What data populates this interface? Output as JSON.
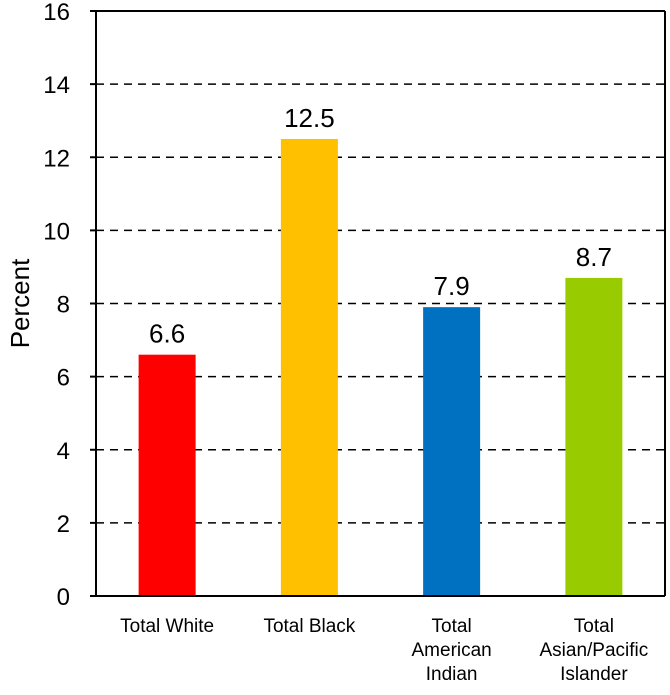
{
  "chart_data": {
    "type": "bar",
    "title": "",
    "xlabel": "",
    "ylabel": "Percent",
    "ylim": [
      0,
      16
    ],
    "yticks": [
      0,
      2,
      4,
      6,
      8,
      10,
      12,
      14,
      16
    ],
    "grid": "dashed horizontal",
    "legend": "none",
    "categories": [
      [
        "Total White"
      ],
      [
        "Total Black"
      ],
      [
        "Total",
        "American",
        "Indian"
      ],
      [
        "Total",
        "Asian/Pacific",
        "Islander"
      ]
    ],
    "values": [
      6.6,
      12.5,
      7.9,
      8.7
    ],
    "data_labels": [
      "6.6",
      "12.5",
      "7.9",
      "8.7"
    ],
    "colors": [
      "#ff0000",
      "#ffc000",
      "#0070c0",
      "#99cc00"
    ]
  }
}
